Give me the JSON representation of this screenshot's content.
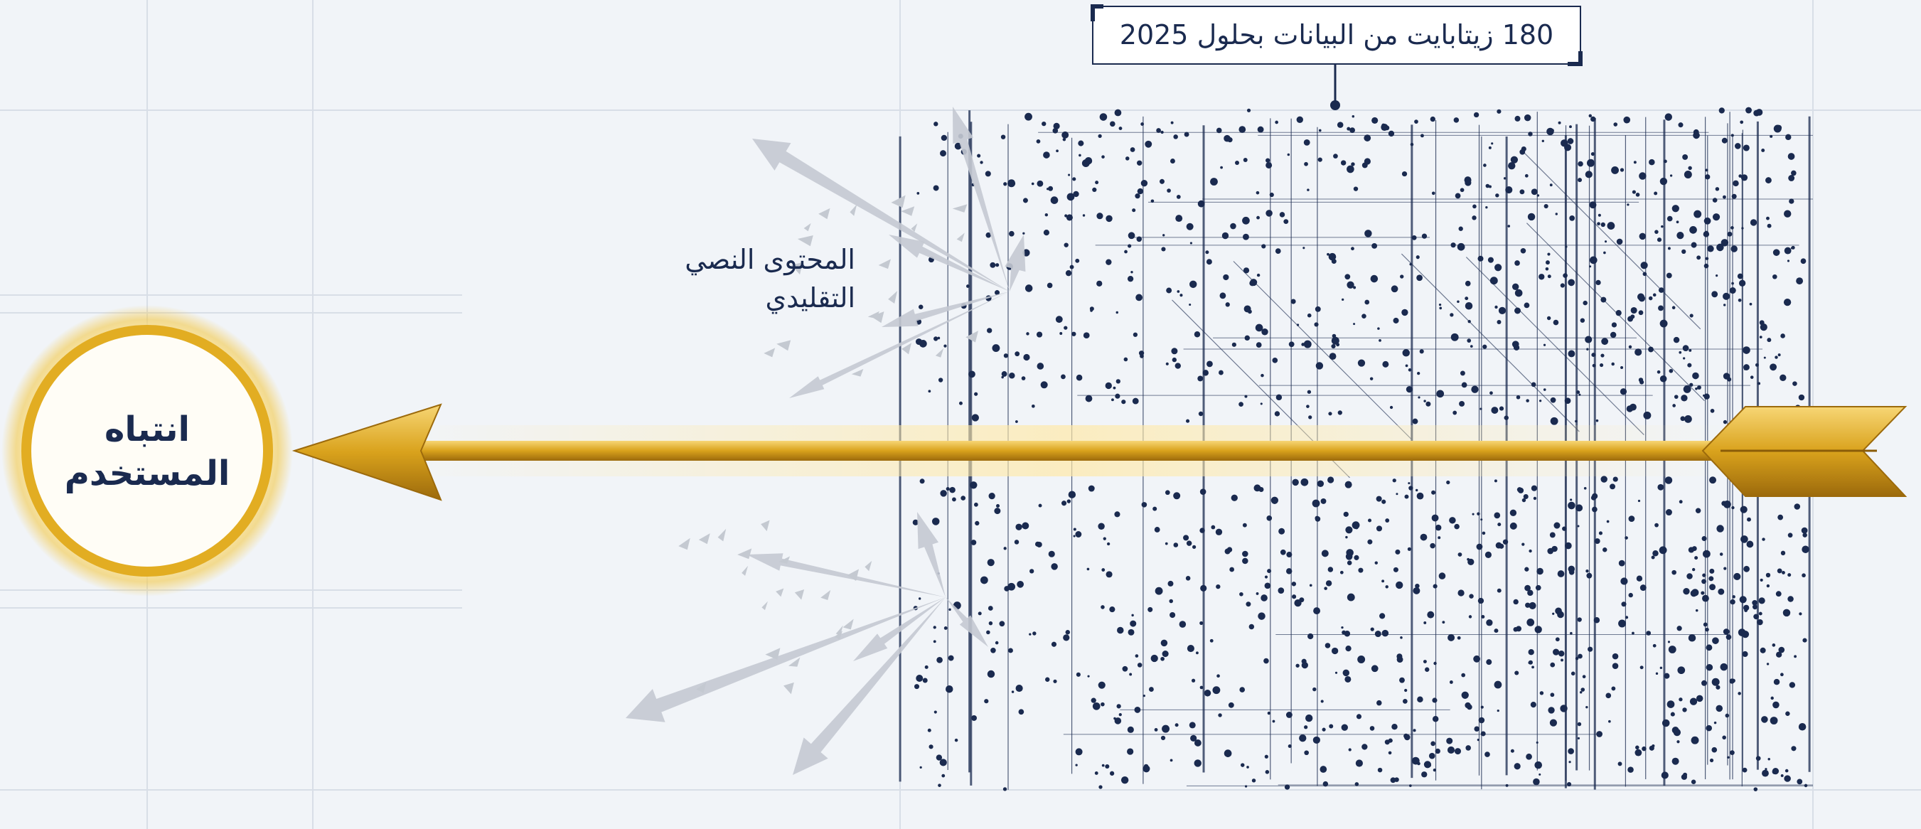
{
  "callout": {
    "label": "180 زيتابايت من البيانات بحلول 2025"
  },
  "side_label": {
    "lines": [
      "المحتوى النصي",
      "التقليدي"
    ]
  },
  "target": {
    "lines": [
      "انتباه",
      "المستخدم"
    ]
  }
}
